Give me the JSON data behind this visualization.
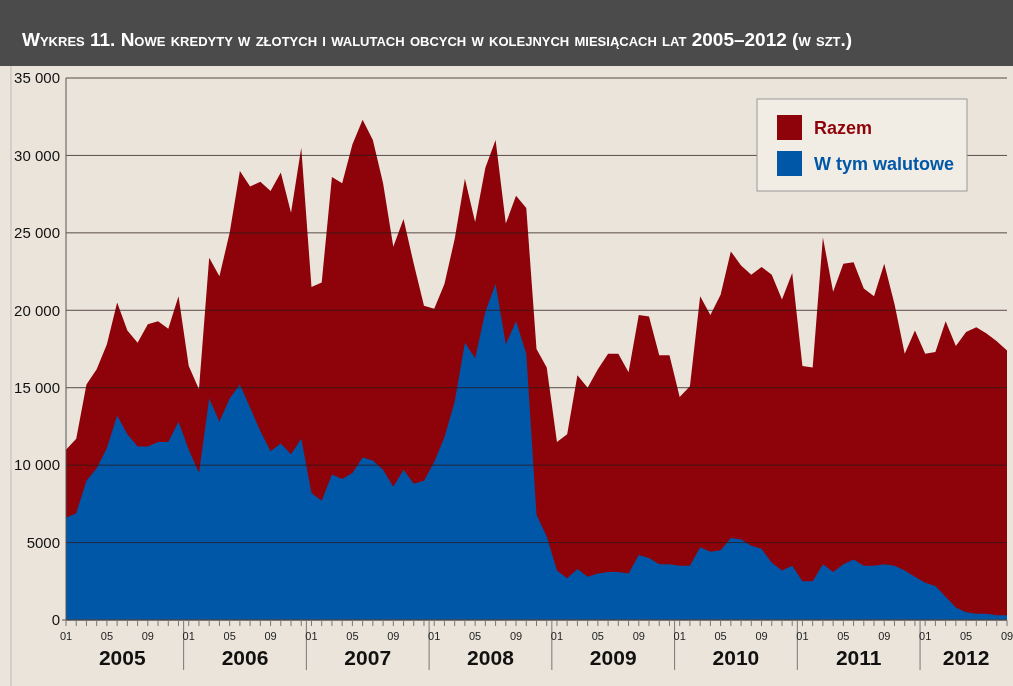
{
  "chart_data": {
    "type": "area",
    "title": "Wykres 11. Nowe kredyty w złotych i walutach obcych w kolejnych miesiącach lat 2005–2012 (w szt.)",
    "x": [
      "2005-01",
      "2005-02",
      "2005-03",
      "2005-04",
      "2005-05",
      "2005-06",
      "2005-07",
      "2005-08",
      "2005-09",
      "2005-10",
      "2005-11",
      "2005-12",
      "2006-01",
      "2006-02",
      "2006-03",
      "2006-04",
      "2006-05",
      "2006-06",
      "2006-07",
      "2006-08",
      "2006-09",
      "2006-10",
      "2006-11",
      "2006-12",
      "2007-01",
      "2007-02",
      "2007-03",
      "2007-04",
      "2007-05",
      "2007-06",
      "2007-07",
      "2007-08",
      "2007-09",
      "2007-10",
      "2007-11",
      "2007-12",
      "2008-01",
      "2008-02",
      "2008-03",
      "2008-04",
      "2008-05",
      "2008-06",
      "2008-07",
      "2008-08",
      "2008-09",
      "2008-10",
      "2008-11",
      "2008-12",
      "2009-01",
      "2009-02",
      "2009-03",
      "2009-04",
      "2009-05",
      "2009-06",
      "2009-07",
      "2009-08",
      "2009-09",
      "2009-10",
      "2009-11",
      "2009-12",
      "2010-01",
      "2010-02",
      "2010-03",
      "2010-04",
      "2010-05",
      "2010-06",
      "2010-07",
      "2010-08",
      "2010-09",
      "2010-10",
      "2010-11",
      "2010-12",
      "2011-01",
      "2011-02",
      "2011-03",
      "2011-04",
      "2011-05",
      "2011-06",
      "2011-07",
      "2011-08",
      "2011-09",
      "2011-10",
      "2011-11",
      "2011-12",
      "2012-01",
      "2012-02",
      "2012-03",
      "2012-04",
      "2012-05",
      "2012-06",
      "2012-07",
      "2012-08",
      "2012-09"
    ],
    "series": [
      {
        "name": "Razem",
        "color": "#8e0309",
        "values": [
          11000,
          11700,
          15200,
          16200,
          17800,
          20500,
          18700,
          17900,
          19100,
          19300,
          18800,
          20900,
          16400,
          14900,
          23400,
          22200,
          25000,
          29000,
          28000,
          28300,
          27700,
          28900,
          26300,
          30500,
          21500,
          21800,
          28600,
          28200,
          30700,
          32300,
          31000,
          28200,
          24100,
          25900,
          23000,
          20300,
          20100,
          21700,
          24600,
          28500,
          25700,
          29200,
          31000,
          25600,
          27400,
          26600,
          17500,
          16300,
          11500,
          12000,
          15800,
          15000,
          16200,
          17200,
          17200,
          16000,
          19700,
          19600,
          17100,
          17100,
          14400,
          15100,
          20900,
          19700,
          21000,
          23800,
          22900,
          22300,
          22800,
          22300,
          20700,
          22400,
          16400,
          16300,
          24700,
          21200,
          23000,
          23100,
          21400,
          20900,
          23000,
          20400,
          17200,
          18700,
          17200,
          17300,
          19300,
          17700,
          18600,
          18900,
          18500,
          18000,
          17400
        ]
      },
      {
        "name": "W tym walutowe",
        "color": "#0057a8",
        "values": [
          6600,
          6900,
          9000,
          9800,
          11100,
          13200,
          12000,
          11200,
          11200,
          11500,
          11500,
          12800,
          11000,
          9500,
          14300,
          12800,
          14300,
          15200,
          13700,
          12200,
          10900,
          11400,
          10700,
          11700,
          8200,
          7700,
          9400,
          9100,
          9500,
          10500,
          10300,
          9700,
          8600,
          9700,
          8800,
          9000,
          10200,
          11800,
          14100,
          17900,
          16900,
          19900,
          21700,
          17800,
          19300,
          17200,
          6800,
          5400,
          3200,
          2700,
          3300,
          2800,
          3000,
          3100,
          3100,
          3000,
          4200,
          4000,
          3600,
          3600,
          3500,
          3500,
          4700,
          4400,
          4500,
          5300,
          5200,
          4800,
          4600,
          3700,
          3200,
          3500,
          2500,
          2500,
          3600,
          3100,
          3600,
          3900,
          3500,
          3500,
          3600,
          3500,
          3200,
          2800,
          2400,
          2200,
          1500,
          800,
          500,
          400,
          400,
          300,
          300
        ]
      }
    ],
    "xlim": [
      "2005-01",
      "2012-09"
    ],
    "xticks": [
      {
        "value": "2005-01",
        "label": "01"
      },
      {
        "value": "2005-05",
        "label": "05"
      },
      {
        "value": "2005-09",
        "label": "09"
      },
      {
        "value": "2006-01",
        "label": "01"
      },
      {
        "value": "2006-05",
        "label": "05"
      },
      {
        "value": "2006-09",
        "label": "09"
      },
      {
        "value": "2007-01",
        "label": "01"
      },
      {
        "value": "2007-05",
        "label": "05"
      },
      {
        "value": "2007-09",
        "label": "09"
      },
      {
        "value": "2008-01",
        "label": "01"
      },
      {
        "value": "2008-05",
        "label": "05"
      },
      {
        "value": "2008-09",
        "label": "09"
      },
      {
        "value": "2009-01",
        "label": "01"
      },
      {
        "value": "2009-05",
        "label": "05"
      },
      {
        "value": "2009-09",
        "label": "09"
      },
      {
        "value": "2010-01",
        "label": "01"
      },
      {
        "value": "2010-05",
        "label": "05"
      },
      {
        "value": "2010-09",
        "label": "09"
      },
      {
        "value": "2011-01",
        "label": "01"
      },
      {
        "value": "2011-05",
        "label": "05"
      },
      {
        "value": "2011-09",
        "label": "09"
      },
      {
        "value": "2012-01",
        "label": "01"
      },
      {
        "value": "2012-05",
        "label": "05"
      },
      {
        "value": "2012-09",
        "label": "09"
      }
    ],
    "ylim": [
      0,
      35000
    ],
    "yticks": [
      0,
      5000,
      {
        "value": 10000,
        "label": "10 000"
      },
      {
        "value": 15000,
        "label": "15 000"
      },
      {
        "value": 20000,
        "label": "20 000"
      },
      {
        "value": 25000,
        "label": "25 000"
      },
      {
        "value": 30000,
        "label": "30 000"
      },
      {
        "value": 35000,
        "label": "35 000"
      }
    ],
    "annotations": [
      "2005",
      "2006",
      "2007",
      "2008",
      "2009",
      "2010",
      "2011",
      "2012"
    ],
    "grid": "y",
    "legend": "top right"
  }
}
